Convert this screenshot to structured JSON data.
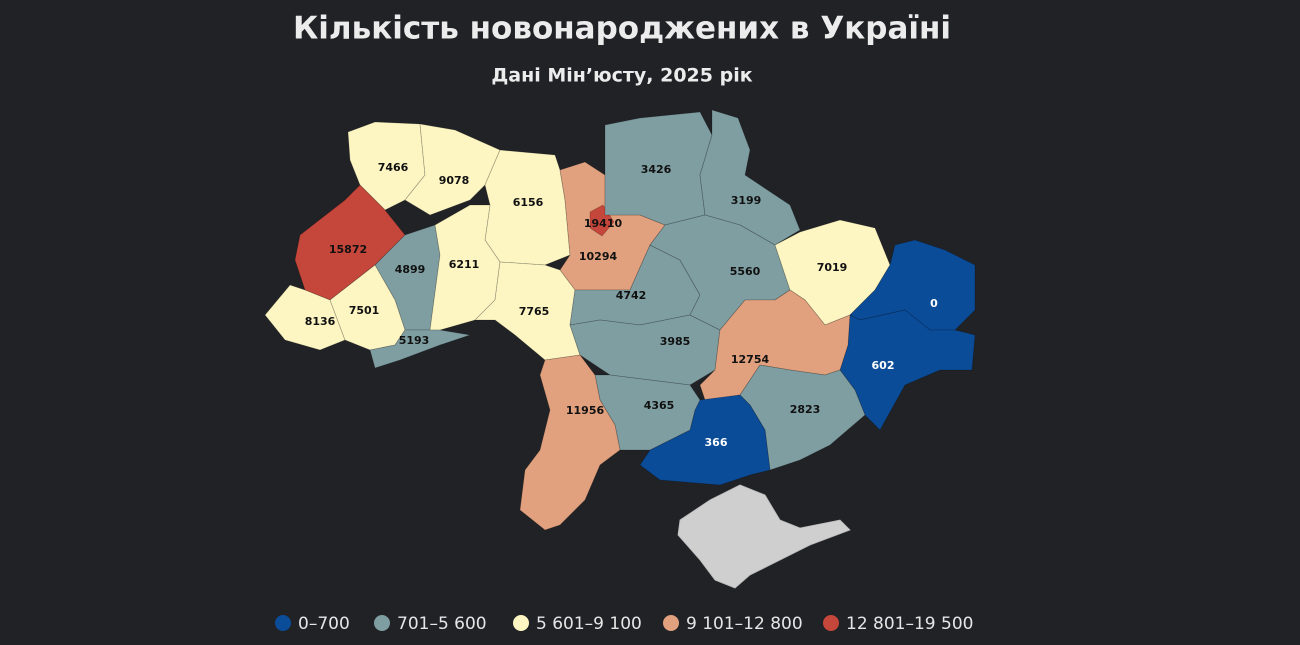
{
  "header": {
    "title": "Кількість новонароджених в Україні",
    "subtitle": "Дані Мін’юсту, 2025 рік"
  },
  "legend": [
    {
      "label": "0–700",
      "color": "#0b4c98"
    },
    {
      "label": "701–5 600",
      "color": "#7f9ea2"
    },
    {
      "label": "5 601–9 100",
      "color": "#fdf6c3"
    },
    {
      "label": "9 101–12 800",
      "color": "#e1a17e"
    },
    {
      "label": "12 801–19 500",
      "color": "#c5463a"
    }
  ],
  "regions": [
    {
      "value": 7466,
      "color": "#fdf6c3"
    },
    {
      "value": 9078,
      "color": "#fdf6c3"
    },
    {
      "value": 6156,
      "color": "#fdf6c3"
    },
    {
      "value": 10294,
      "color": "#e1a17e"
    },
    {
      "value": 19410,
      "color": "#c5463a"
    },
    {
      "value": 3426,
      "color": "#7f9ea2"
    },
    {
      "value": 3199,
      "color": "#7f9ea2"
    },
    {
      "value": 15872,
      "color": "#c5463a"
    },
    {
      "value": 4899,
      "color": "#7f9ea2"
    },
    {
      "value": 6211,
      "color": "#fdf6c3"
    },
    {
      "value": 8136,
      "color": "#fdf6c3"
    },
    {
      "value": 7501,
      "color": "#fdf6c3"
    },
    {
      "value": 5193,
      "color": "#7f9ea2"
    },
    {
      "value": 7765,
      "color": "#fdf6c3"
    },
    {
      "value": 4742,
      "color": "#7f9ea2"
    },
    {
      "value": 3985,
      "color": "#7f9ea2"
    },
    {
      "value": 5560,
      "color": "#7f9ea2"
    },
    {
      "value": 7019,
      "color": "#fdf6c3"
    },
    {
      "value": 0,
      "color": "#0b4c98"
    },
    {
      "value": 602,
      "color": "#0b4c98"
    },
    {
      "value": 12754,
      "color": "#e1a17e"
    },
    {
      "value": 2823,
      "color": "#7f9ea2"
    },
    {
      "value": 366,
      "color": "#0b4c98"
    },
    {
      "value": 4365,
      "color": "#7f9ea2"
    },
    {
      "value": 11956,
      "color": "#e1a17e"
    }
  ]
}
